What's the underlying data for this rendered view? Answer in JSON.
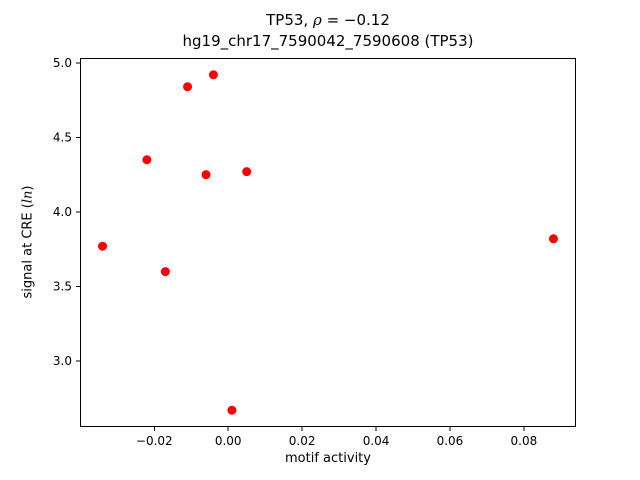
{
  "figure": {
    "title_prefix": "TP53, ",
    "title_rho": "ρ",
    "title_rest": " = −0.12",
    "subtitle": "hg19_chr17_7590042_7590608 (TP53)",
    "xlabel": "motif activity",
    "ylabel_prefix": "signal at CRE (",
    "ylabel_italic": "ln",
    "ylabel_suffix": ")"
  },
  "chart_data": {
    "type": "scatter",
    "title": "TP53, ρ = −0.12",
    "subtitle": "hg19_chr17_7590042_7590608 (TP53)",
    "xlabel": "motif activity",
    "ylabel": "signal at CRE (ln)",
    "marker_color": "#ff0000",
    "axis_color": "#000000",
    "grid": false,
    "legend": "none",
    "xlim": [
      -0.0401,
      0.0941
    ],
    "ylim": [
      2.5575,
      5.0325
    ],
    "xticks": [
      -0.02,
      0.0,
      0.02,
      0.04,
      0.06,
      0.08
    ],
    "xtick_labels": [
      "−0.02",
      "0.00",
      "0.02",
      "0.04",
      "0.06",
      "0.08"
    ],
    "yticks": [
      3.0,
      3.5,
      4.0,
      4.5,
      5.0
    ],
    "ytick_labels": [
      "3.0",
      "3.5",
      "4.0",
      "4.5",
      "5.0"
    ],
    "points": [
      {
        "x": -0.034,
        "y": 3.77
      },
      {
        "x": -0.022,
        "y": 4.35
      },
      {
        "x": -0.017,
        "y": 3.6
      },
      {
        "x": -0.011,
        "y": 4.84
      },
      {
        "x": -0.006,
        "y": 4.25
      },
      {
        "x": -0.004,
        "y": 4.92
      },
      {
        "x": 0.001,
        "y": 2.67
      },
      {
        "x": 0.005,
        "y": 4.27
      },
      {
        "x": 0.088,
        "y": 3.82
      }
    ]
  }
}
